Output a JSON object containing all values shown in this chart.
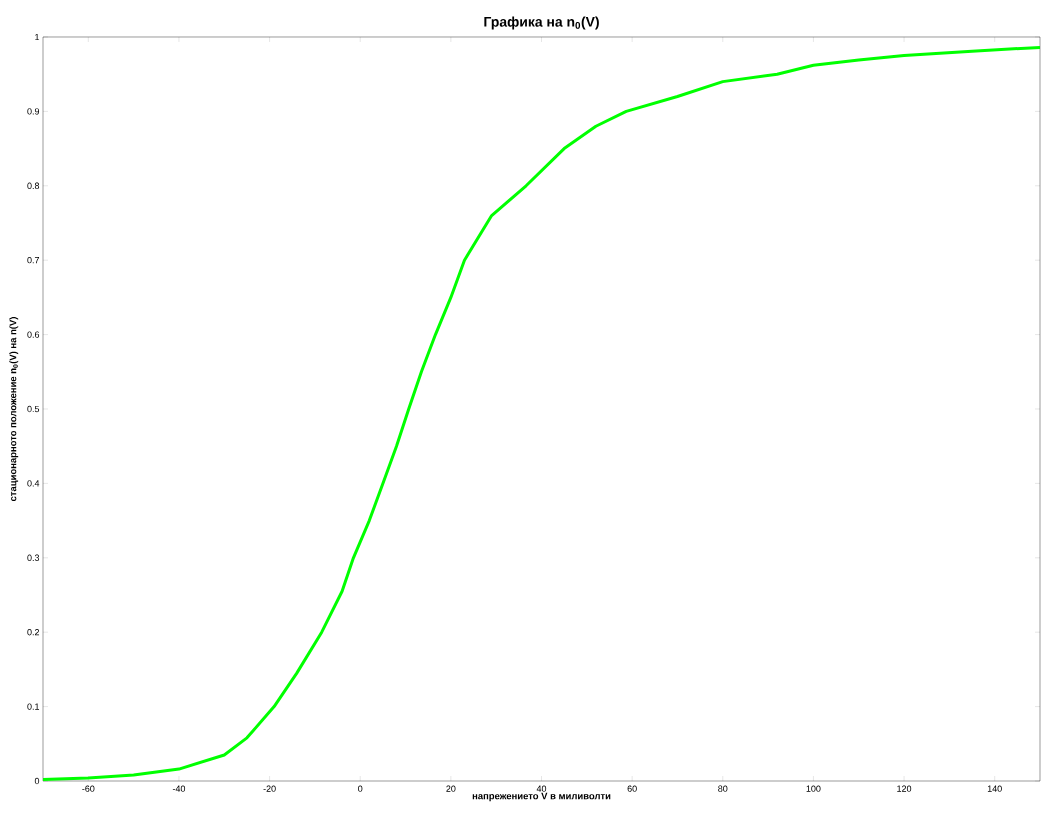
{
  "chart_data": {
    "type": "line",
    "title": "Графика на n$_{0}$(V)",
    "xlabel": "напрежението V в миливолти",
    "ylabel": "стационарното положение n$_{0}$(V) на n(V)",
    "xlim": [
      -70,
      150
    ],
    "ylim": [
      0,
      1
    ],
    "xticks": [
      -60,
      -40,
      -20,
      0,
      20,
      40,
      60,
      80,
      100,
      120,
      140
    ],
    "yticks": [
      0,
      0.1,
      0.2,
      0.3,
      0.4,
      0.5,
      0.6,
      0.7,
      0.8,
      0.9,
      1
    ],
    "grid": false,
    "series": [
      {
        "color": "#00ff00",
        "x": [
          -70,
          -60,
          -50,
          -40,
          -30,
          -25,
          -19,
          -14,
          -8.5,
          -4,
          -1.5,
          2,
          5,
          8,
          10.7,
          13.5,
          16.6,
          20,
          23,
          29,
          36.6,
          45,
          52,
          58.7,
          70,
          80,
          92,
          100,
          110,
          120,
          135,
          150
        ],
        "values": [
          0.002,
          0.004,
          0.008,
          0.016,
          0.035,
          0.058,
          0.1,
          0.145,
          0.2,
          0.255,
          0.3,
          0.35,
          0.4,
          0.45,
          0.5,
          0.55,
          0.6,
          0.65,
          0.7,
          0.76,
          0.8,
          0.85,
          0.88,
          0.9,
          0.92,
          0.94,
          0.95,
          0.962,
          0.969,
          0.975,
          0.981,
          0.986
        ]
      }
    ]
  }
}
